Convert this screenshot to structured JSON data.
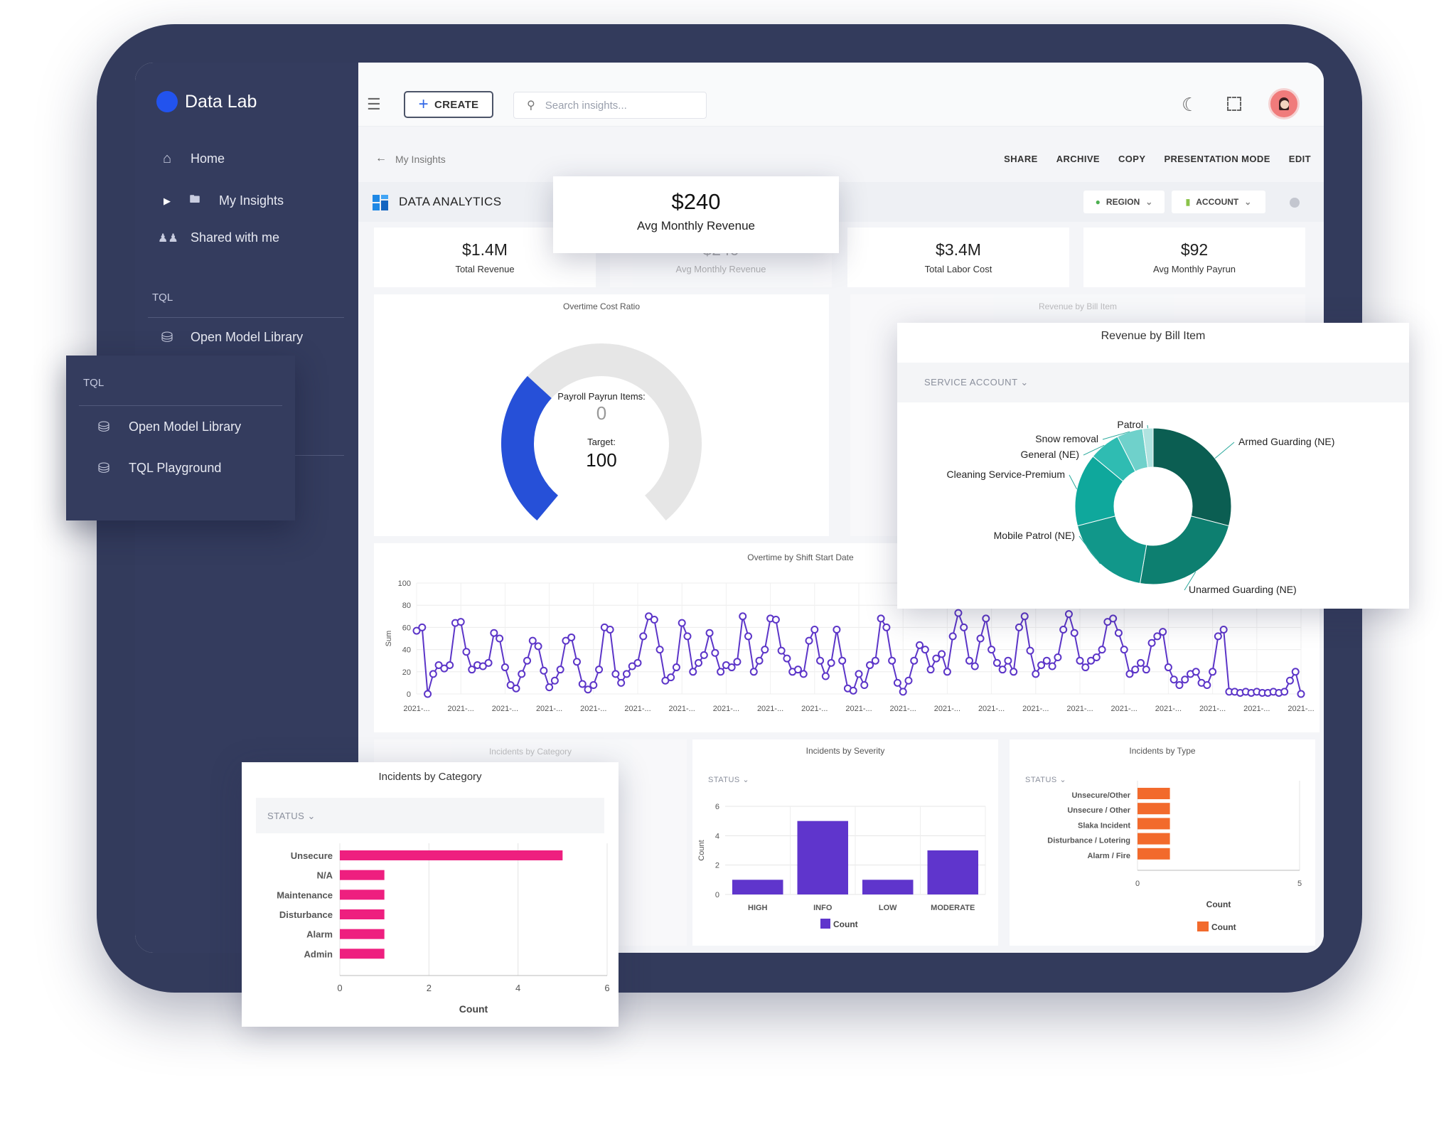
{
  "app": {
    "name": "Data Lab"
  },
  "sidebar": {
    "items": [
      {
        "label": "Home",
        "icon": "home-icon"
      },
      {
        "label": "My Insights",
        "icon": "folder-icon"
      },
      {
        "label": "Shared with me",
        "icon": "people-icon"
      }
    ],
    "section_label": "TQL",
    "tql_items": [
      {
        "label": "Open Model Library",
        "icon": "database-icon"
      }
    ]
  },
  "tql_popup": {
    "section_label": "TQL",
    "items": [
      {
        "label": "Open Model Library",
        "icon": "database-icon"
      },
      {
        "label": "TQL Playground",
        "icon": "search-database-icon"
      }
    ]
  },
  "topbar": {
    "create_label": "CREATE",
    "search_placeholder": "Search insights..."
  },
  "breadcrumb": {
    "label": "My Insights"
  },
  "actions": [
    "SHARE",
    "ARCHIVE",
    "COPY",
    "PRESENTATION MODE",
    "EDIT"
  ],
  "page_title": "DATA ANALYTICS",
  "filters": {
    "region": "REGION",
    "account": "ACCOUNT"
  },
  "kpis": [
    {
      "value": "$1.4M",
      "label": "Total Revenue"
    },
    {
      "value": "$240",
      "label": "Avg Monthly Revenue"
    },
    {
      "value": "$3.4M",
      "label": "Total Labor Cost"
    },
    {
      "value": "$92",
      "label": "Avg Monthly Payrun"
    }
  ],
  "highlight_kpi": {
    "value": "$240",
    "label": "Avg Monthly Revenue"
  },
  "gauge": {
    "title": "Overtime Cost Ratio",
    "items_label": "Payroll Payrun Items:",
    "items_value": "0",
    "target_label": "Target:",
    "target_value": "100",
    "fill_fraction": 0.33,
    "fill_color": "#2650d8"
  },
  "revenue_panel": {
    "title": "Revenue by Bill Item",
    "dropdown": "SERVICE ACCOUNT"
  },
  "chart_data": [
    {
      "type": "pie",
      "title": "Revenue by Bill Item",
      "donut": true,
      "labels": [
        "Armed Guarding (NE)",
        "Unarmed Guarding (NE)",
        "Mobile Patrol (NE)",
        "Cleaning Service-Premium",
        "General (NE)",
        "Snow removal",
        "Patrol"
      ],
      "values": [
        27,
        22,
        17,
        14,
        6,
        5,
        2
      ],
      "colors": [
        "#0b5e52",
        "#0d7f70",
        "#11978a",
        "#0fa89c",
        "#2fbcb2",
        "#6fd1cb",
        "#b0e3e0"
      ]
    },
    {
      "type": "line",
      "title": "Overtime by Shift Start Date",
      "ylabel": "Sum",
      "xlabel": "",
      "ylim": [
        0,
        100
      ],
      "yticks": [
        0,
        20,
        40,
        60,
        80,
        100
      ],
      "xtick_label": "2021-...",
      "xtick_count": 21,
      "color": "#5c35c8",
      "values": [
        57,
        60,
        0,
        18,
        26,
        23,
        26,
        64,
        65,
        38,
        22,
        26,
        25,
        28,
        55,
        50,
        24,
        8,
        5,
        18,
        30,
        48,
        43,
        21,
        6,
        12,
        22,
        48,
        51,
        29,
        9,
        4,
        8,
        22,
        60,
        58,
        18,
        10,
        18,
        25,
        28,
        52,
        70,
        67,
        40,
        12,
        15,
        24,
        64,
        52,
        20,
        28,
        35,
        55,
        37,
        20,
        26,
        24,
        29,
        70,
        52,
        20,
        30,
        40,
        68,
        67,
        39,
        32,
        20,
        22,
        18,
        48,
        58,
        30,
        16,
        28,
        58,
        30,
        5,
        3,
        18,
        8,
        26,
        30,
        68,
        60,
        30,
        10,
        2,
        12,
        30,
        44,
        40,
        22,
        32,
        36,
        20,
        52,
        73,
        60,
        30,
        25,
        50,
        68,
        40,
        28,
        22,
        30,
        20,
        60,
        70,
        39,
        18,
        26,
        30,
        25,
        33,
        58,
        72,
        55,
        30,
        24,
        30,
        33,
        40,
        65,
        68,
        55,
        40,
        18,
        22,
        28,
        22,
        46,
        52,
        56,
        24,
        13,
        8,
        13,
        18,
        20,
        10,
        8,
        20,
        52,
        58,
        2,
        2,
        1,
        2,
        1,
        2,
        1,
        1,
        2,
        1,
        2,
        12,
        20,
        0
      ],
      "values_note_count": 161
    },
    {
      "type": "bar",
      "orientation": "horizontal",
      "title": "Incidents by Category",
      "categories": [
        "Unsecure",
        "N/A",
        "Maintenance",
        "Disturbance",
        "Alarm",
        "Admin"
      ],
      "series": [
        {
          "name": "Count",
          "values": [
            5,
            1,
            1,
            1,
            1,
            1
          ]
        }
      ],
      "xlabel": "Count",
      "xlim": [
        0,
        6
      ],
      "xticks": [
        0,
        2,
        4,
        6
      ],
      "color": "#ee1f7f"
    },
    {
      "type": "bar",
      "title": "Incidents by Severity",
      "categories": [
        "HIGH",
        "INFO",
        "LOW",
        "MODERATE"
      ],
      "series": [
        {
          "name": "Count",
          "values": [
            1,
            5,
            1,
            3
          ]
        }
      ],
      "ylabel": "Count",
      "ylim": [
        0,
        6
      ],
      "yticks": [
        0,
        2,
        4,
        6
      ],
      "color": "#5f35cc"
    },
    {
      "type": "bar",
      "orientation": "horizontal",
      "title": "Incidents by Type",
      "categories": [
        "Unsecure/Other",
        "Unsecure / Other",
        "Slaka Incident",
        "Disturbance / Lotering",
        "Alarm / Fire"
      ],
      "series": [
        {
          "name": "Count",
          "values": [
            1,
            1,
            1,
            1,
            1
          ]
        }
      ],
      "xlabel": "Count",
      "xlim": [
        0,
        5
      ],
      "xticks": [
        0,
        5
      ],
      "color": "#f26a2c"
    }
  ],
  "status_dropdown": "STATUS",
  "legend_count": "Count"
}
